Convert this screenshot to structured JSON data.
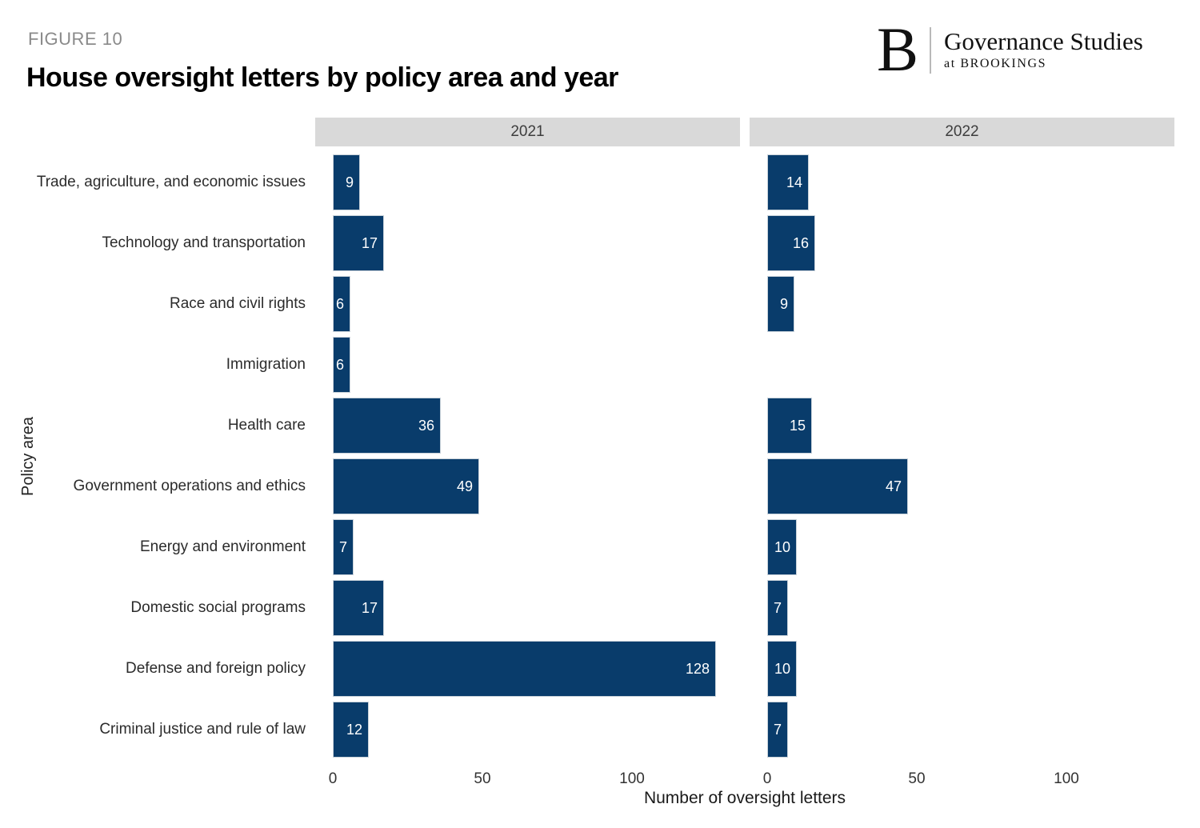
{
  "header": {
    "figure_label": "FIGURE 10",
    "title": "House oversight letters by policy area and year"
  },
  "logo": {
    "mark": "B",
    "org": "Governance Studies",
    "sub": "at BROOKINGS"
  },
  "chart_data": {
    "type": "bar",
    "orientation": "horizontal",
    "title": "House oversight letters by policy area and year",
    "xlabel": "Number of oversight letters",
    "ylabel": "Policy area",
    "facets": [
      "2021",
      "2022"
    ],
    "categories": [
      "Trade, agriculture, and economic issues",
      "Technology and transportation",
      "Race and civil rights",
      "Immigration",
      "Health care",
      "Government operations and ethics",
      "Energy and environment",
      "Domestic social programs",
      "Defense and foreign policy",
      "Criminal justice and rule of law"
    ],
    "series": [
      {
        "name": "2021",
        "values": [
          9,
          17,
          6,
          6,
          36,
          49,
          7,
          17,
          128,
          12
        ]
      },
      {
        "name": "2022",
        "values": [
          14,
          16,
          9,
          null,
          15,
          47,
          10,
          7,
          10,
          7
        ]
      }
    ],
    "x_ticks": [
      0,
      50,
      100
    ],
    "xlim": [
      0,
      136
    ],
    "grid": "off",
    "value_labels": "inside-end",
    "colors": {
      "bar": "#093c6b",
      "strip_background": "#d9d9d9",
      "value_label": "#ffffff",
      "figure_label": "#8a8a8a"
    }
  }
}
